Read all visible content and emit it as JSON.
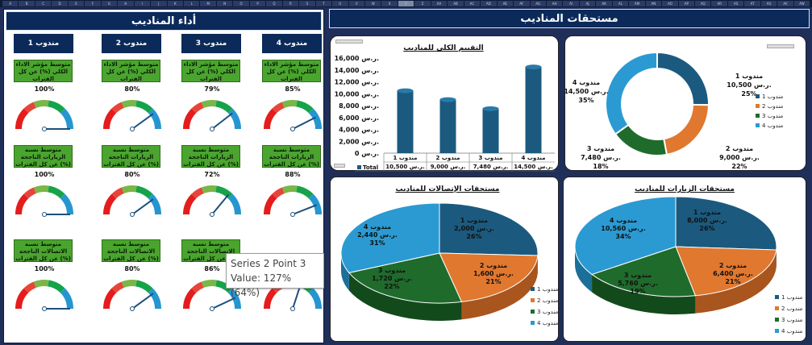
{
  "column_headers": [
    "A",
    "B",
    "C",
    "D",
    "E",
    "F",
    "G",
    "H",
    "I",
    "J",
    "K",
    "L",
    "M",
    "N",
    "O",
    "P",
    "Q",
    "R",
    "S",
    "T",
    "U",
    "V",
    "W",
    "X",
    "Y",
    "Z",
    "AA",
    "AB",
    "AC",
    "AD",
    "AE",
    "AF",
    "AG",
    "AH",
    "AI",
    "AJ",
    "AK",
    "AL",
    "AM",
    "AN",
    "AO",
    "AP",
    "AQ",
    "AR",
    "AS",
    "AT",
    "AU",
    "AV",
    "AW"
  ],
  "left_header": "أداء المناديب",
  "right_header": "مستحقات  المناديب",
  "reps": [
    "مندوب 4",
    "مندوب 3",
    "مندوب 2",
    "مندوب 1"
  ],
  "metric_rows": [
    {
      "label": "متوسط مؤشر الاداء الكلي (%) عن كل الفترات",
      "values": [
        "85%",
        "79%",
        "80%",
        "100%"
      ],
      "fractions": [
        0.85,
        0.79,
        0.8,
        1.0
      ]
    },
    {
      "label": "متوسط نسبة الزيارات الناجحة (%) عن كل الفترات",
      "values": [
        "88%",
        "72%",
        "80%",
        "100%"
      ],
      "fractions": [
        0.88,
        0.72,
        0.8,
        1.0
      ]
    },
    {
      "label": "متوسط نسبة الاتصالات الناجحة (%) عن كل الفترات",
      "values": [
        "",
        "86%",
        "80%",
        "100%"
      ],
      "fractions": [
        0.6,
        0.86,
        0.8,
        1.0
      ]
    }
  ],
  "tooltip": {
    "line1": "Series 2 Point 3",
    "line2": "Value: 127% (64%)"
  },
  "colors": {
    "rep1": "#1b5a7e",
    "rep2": "#e0782f",
    "rep3": "#1f6b2c",
    "rep4": "#2b9ad2"
  },
  "chart_data": [
    {
      "type": "bar",
      "title": "التقييم الكلي للمناديب",
      "categories": [
        "مندوب 1",
        "مندوب 2",
        "مندوب 3",
        "مندوب 4"
      ],
      "series": [
        {
          "name": "Total",
          "values": [
            10500,
            9000,
            7480,
            14500
          ]
        }
      ],
      "value_labels": [
        "10,500 ر.س.",
        "9,000 ر.س.",
        "7,480 ر.س.",
        "14,500 ر.س."
      ],
      "ylim": [
        0,
        16000
      ],
      "yticks": [
        "16,000 ر.س.",
        "14,000 ر.س.",
        "12,000 ر.س.",
        "10,000 ر.س.",
        "8,000 ر.س.",
        "6,000 ر.س.",
        "4,000 ر.س.",
        "2,000 ر.س.",
        "0 ر.س."
      ],
      "legend_label": "Total"
    },
    {
      "type": "pie",
      "variant": "donut",
      "categories": [
        "مندوب 1",
        "مندوب 2",
        "مندوب 3",
        "مندوب 4"
      ],
      "values": [
        10500,
        9000,
        7480,
        14500
      ],
      "value_labels": [
        "10,500 ر.س.",
        "9,000 ر.س.",
        "7,480 ر.س.",
        "14,500 ر.س."
      ],
      "percent_labels": [
        "25%",
        "22%",
        "18%",
        "35%"
      ],
      "legend": [
        "مندوب 1",
        "مندوب 2",
        "مندوب 3",
        "مندوب 4"
      ]
    },
    {
      "type": "pie",
      "variant": "3d",
      "title": "مستحقات الإتصالات للمناديب",
      "categories": [
        "مندوب 1",
        "مندوب 2",
        "مندوب 3",
        "مندوب 4"
      ],
      "values": [
        2000,
        1600,
        1720,
        2440
      ],
      "value_labels": [
        "2,000 ر.س.",
        "1,600 ر.س.",
        "1,720 ر.س.",
        "2,440 ر.س."
      ],
      "percent_labels": [
        "26%",
        "21%",
        "22%",
        "31%"
      ],
      "legend": [
        "مندوب 1",
        "مندوب 2",
        "مندوب 3",
        "مندوب 4"
      ]
    },
    {
      "type": "pie",
      "variant": "3d",
      "title": "مستحقات الزيارات للمناديب",
      "categories": [
        "مندوب 1",
        "مندوب 2",
        "مندوب 3",
        "مندوب 4"
      ],
      "values": [
        8000,
        6400,
        5760,
        10560
      ],
      "value_labels": [
        "8,000 ر.س.",
        "6,400 ر.س.",
        "5,760 ر.س.",
        "10,560 ر.س."
      ],
      "percent_labels": [
        "26%",
        "21%",
        "19%",
        "34%"
      ],
      "legend": [
        "مندوب 1",
        "مندوب 2",
        "مندوب 3",
        "مندوب 4"
      ]
    }
  ]
}
